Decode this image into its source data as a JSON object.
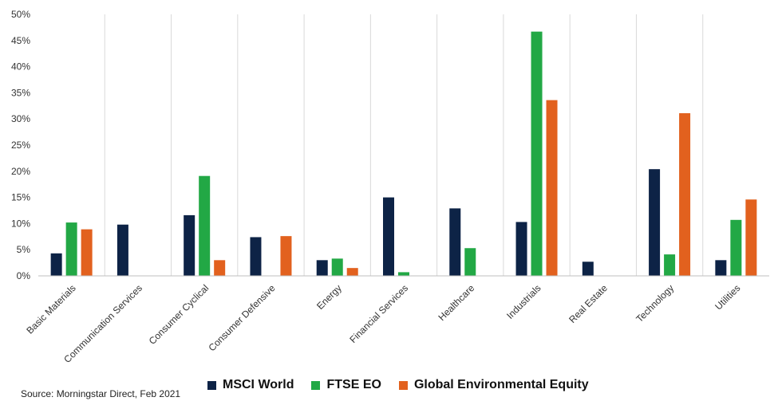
{
  "chart_data": {
    "type": "bar",
    "categories": [
      "Basic Materials",
      "Communication Services",
      "Consumer Cyclical",
      "Consumer Defensive",
      "Energy",
      "Financial Services",
      "Healthcare",
      "Industrials",
      "Real Estate",
      "Technology",
      "Utilities"
    ],
    "series": [
      {
        "name": "MSCI World",
        "color": "#0d2346",
        "values": [
          4.3,
          9.8,
          11.6,
          7.4,
          3.0,
          15.0,
          12.9,
          10.3,
          2.7,
          20.4,
          3.0
        ]
      },
      {
        "name": "FTSE EO",
        "color": "#22a845",
        "values": [
          10.2,
          0,
          19.1,
          0,
          3.3,
          0.7,
          5.3,
          46.7,
          0,
          4.1,
          10.7
        ]
      },
      {
        "name": "Global Environmental Equity",
        "color": "#e2611e",
        "values": [
          8.9,
          0,
          3.0,
          7.6,
          1.5,
          0,
          0,
          33.6,
          0,
          31.1,
          14.6
        ]
      }
    ],
    "ylim": [
      0,
      50
    ],
    "yticks": [
      "0%",
      "5%",
      "10%",
      "15%",
      "20%",
      "25%",
      "30%",
      "35%",
      "40%",
      "45%",
      "50%"
    ],
    "grid": "vertical category separators",
    "legend_position": "bottom"
  },
  "source": "Source: Morningstar Direct, Feb 2021"
}
